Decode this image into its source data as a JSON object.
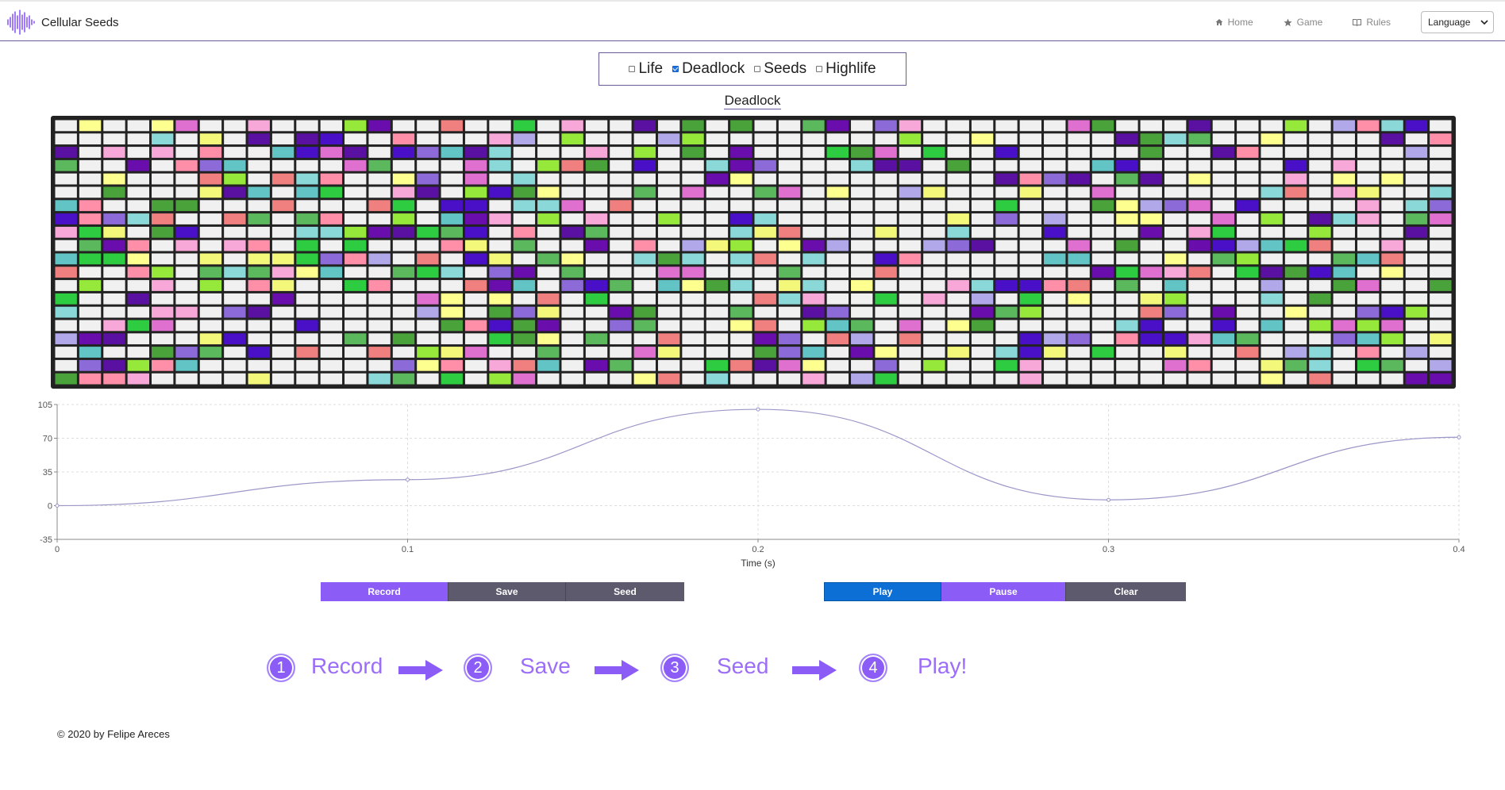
{
  "navbar": {
    "brand": "Cellular Seeds",
    "links": [
      {
        "label": "Home",
        "icon": "home-icon"
      },
      {
        "label": "Game",
        "icon": "star-icon"
      },
      {
        "label": "Rules",
        "icon": "book-icon"
      }
    ],
    "language_label": "Language"
  },
  "rules": {
    "options": [
      {
        "label": "Life",
        "checked": false
      },
      {
        "label": "Deadlock",
        "checked": true
      },
      {
        "label": "Seeds",
        "checked": false
      },
      {
        "label": "Highlife",
        "checked": false
      }
    ],
    "current_title": "Deadlock"
  },
  "grid": {
    "columns": 58,
    "rows": 20,
    "palette": [
      "#f0f0f0",
      "#f4f87a",
      "#fdff8f",
      "#96e83a",
      "#2ecc40",
      "#5cb85c",
      "#4aa23a",
      "#8c6ad8",
      "#5a10a0",
      "#6a0dad",
      "#4a10c8",
      "#e070d0",
      "#f7a8d8",
      "#8ad8d8",
      "#62c4c4",
      "#b0a8e8",
      "#ff8fa8",
      "#f08080"
    ]
  },
  "chart_data": {
    "type": "line",
    "x": [
      0,
      0.1,
      0.2,
      0.3,
      0.4
    ],
    "y": [
      0,
      27,
      100,
      6,
      71
    ],
    "xlabel": "Time (s)",
    "ylabel": "",
    "xlim": [
      0,
      0.4
    ],
    "ylim": [
      -35,
      105
    ],
    "x_ticks": [
      "0",
      "0.1",
      "0.2",
      "0.3",
      "0.4"
    ],
    "y_ticks": [
      "105",
      "70",
      "35",
      "0",
      "-35"
    ],
    "grid": true,
    "line_color": "#9b97c8"
  },
  "controls": {
    "record": "Record",
    "save": "Save",
    "seed": "Seed",
    "play": "Play",
    "pause": "Pause",
    "clear": "Clear"
  },
  "steps": [
    {
      "num": "1",
      "label": "Record"
    },
    {
      "num": "2",
      "label": "Save"
    },
    {
      "num": "3",
      "label": "Seed"
    },
    {
      "num": "4",
      "label": "Play!"
    }
  ],
  "footer": "© 2020 by Felipe Areces",
  "colors": {
    "accent": "#8b5cf6",
    "play": "#0b6fd6",
    "dark_button": "#5e5a6e"
  }
}
